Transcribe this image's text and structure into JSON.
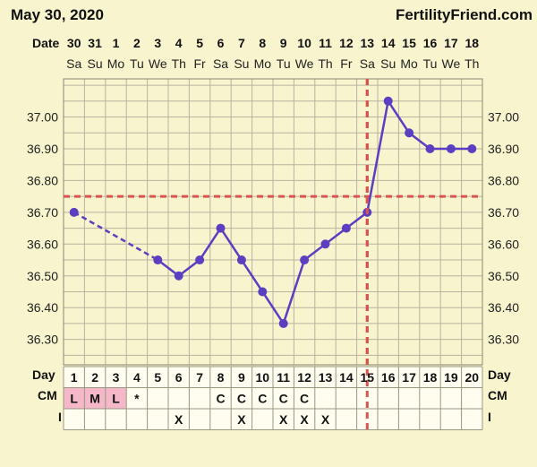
{
  "header": {
    "date": "May 30, 2020",
    "brand": "FertilityFriend.com"
  },
  "labels": {
    "date_row": "Date",
    "day_row": "Day",
    "cm_row": "CM",
    "i_row": "I"
  },
  "colors": {
    "line": "#5a3fc0",
    "coverline": "#d9534f",
    "cm_highlight": "#f4b8c8",
    "background": "#f8f4ce"
  },
  "chart_data": {
    "type": "line",
    "dates": [
      "30",
      "31",
      "1",
      "2",
      "3",
      "4",
      "5",
      "6",
      "7",
      "8",
      "9",
      "10",
      "11",
      "12",
      "13",
      "14",
      "15",
      "16",
      "17",
      "18"
    ],
    "weekdays": [
      "Sa",
      "Su",
      "Mo",
      "Tu",
      "We",
      "Th",
      "Fr",
      "Sa",
      "Su",
      "Mo",
      "Tu",
      "We",
      "Th",
      "Fr",
      "Sa",
      "Su",
      "Mo",
      "Tu",
      "We",
      "Th"
    ],
    "cycle_days": [
      1,
      2,
      3,
      4,
      5,
      6,
      7,
      8,
      9,
      10,
      11,
      12,
      13,
      14,
      15,
      16,
      17,
      18,
      19,
      20
    ],
    "temperatures": [
      36.7,
      null,
      null,
      null,
      36.55,
      36.5,
      36.55,
      36.65,
      36.55,
      36.45,
      36.35,
      36.55,
      36.6,
      36.65,
      36.7,
      37.05,
      36.95,
      36.9,
      36.9,
      36.9
    ],
    "dashed_segment": [
      1,
      5
    ],
    "y_ticks": [
      "37.00",
      "36.90",
      "36.80",
      "36.70",
      "36.60",
      "36.50",
      "36.40",
      "36.30"
    ],
    "ylim": [
      36.22,
      37.12
    ],
    "coverline": 36.75,
    "ovulation_day": 15,
    "cm": [
      "L",
      "M",
      "L",
      "*",
      "",
      "",
      "",
      "C",
      "C",
      "C",
      "C",
      "C",
      "",
      "",
      "",
      "",
      "",
      "",
      "",
      ""
    ],
    "cm_highlight_days": [
      1,
      2,
      3
    ],
    "intercourse": [
      "",
      "",
      "",
      "",
      "",
      "X",
      "",
      "",
      "X",
      "",
      "X",
      "X",
      "X",
      "",
      "",
      "",
      "",
      "",
      "",
      ""
    ]
  }
}
